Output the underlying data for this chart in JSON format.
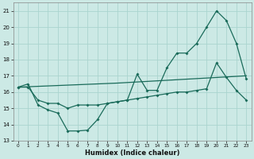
{
  "xlabel": "Humidex (Indice chaleur)",
  "xlim": [
    -0.5,
    23.5
  ],
  "ylim": [
    13,
    21.5
  ],
  "yticks": [
    13,
    14,
    15,
    16,
    17,
    18,
    19,
    20,
    21
  ],
  "xticks": [
    0,
    1,
    2,
    3,
    4,
    5,
    6,
    7,
    8,
    9,
    10,
    11,
    12,
    13,
    14,
    15,
    16,
    17,
    18,
    19,
    20,
    21,
    22,
    23
  ],
  "bg_color": "#cce9e5",
  "line_color": "#1a6b5a",
  "grid_color": "#aad4cf",
  "line1_x": [
    0,
    1,
    2,
    3,
    4,
    5,
    6,
    7,
    8,
    9,
    10,
    11,
    12,
    13,
    14,
    15,
    16,
    17,
    18,
    19,
    20,
    21,
    22,
    23
  ],
  "line1_y": [
    16.3,
    16.5,
    15.2,
    14.9,
    14.7,
    13.6,
    13.6,
    13.65,
    14.3,
    15.3,
    15.4,
    15.5,
    17.1,
    16.1,
    16.1,
    17.5,
    18.4,
    18.4,
    19.0,
    20.0,
    21.0,
    20.4,
    19.0,
    16.8
  ],
  "line2_x": [
    0,
    1,
    2,
    3,
    4,
    5,
    6,
    7,
    8,
    9,
    10,
    11,
    12,
    13,
    14,
    15,
    16,
    17,
    18,
    19,
    20,
    21,
    22,
    23
  ],
  "line2_y": [
    16.3,
    16.3,
    15.5,
    15.3,
    15.3,
    15.0,
    15.2,
    15.2,
    15.2,
    15.3,
    15.4,
    15.5,
    15.6,
    15.7,
    15.8,
    15.9,
    16.0,
    16.0,
    16.1,
    16.2,
    17.8,
    16.9,
    16.1,
    15.5
  ],
  "line3_x": [
    0,
    10,
    23
  ],
  "line3_y": [
    16.3,
    16.55,
    17.0
  ]
}
